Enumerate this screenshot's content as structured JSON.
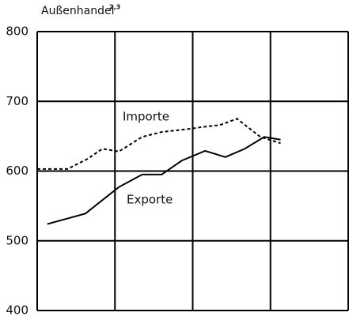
{
  "chart_data": {
    "type": "line",
    "title": "Außenhandel",
    "title_note": "2,3",
    "xlim": [
      0,
      4
    ],
    "xticks": [
      0,
      1,
      2,
      3,
      4
    ],
    "ylim": [
      400,
      800
    ],
    "yticks": [
      400,
      500,
      600,
      700,
      800
    ],
    "grid": true,
    "series": [
      {
        "name": "Importe",
        "color": "#000000",
        "dashed": true,
        "x": [
          0,
          0.39,
          0.64,
          0.84,
          1.05,
          1.35,
          1.6,
          2.0,
          2.11,
          2.35,
          2.57,
          2.87,
          3.13
        ],
        "values": [
          603,
          603,
          617,
          632,
          628,
          649,
          656,
          661,
          663,
          666,
          675,
          649,
          640
        ]
      },
      {
        "name": "Exporte",
        "color": "#000000",
        "dashed": false,
        "x": [
          0.13,
          0.62,
          1.05,
          1.35,
          1.6,
          1.86,
          2.16,
          2.42,
          2.67,
          2.92,
          3.13
        ],
        "values": [
          524,
          539,
          577,
          595,
          595,
          615,
          629,
          620,
          632,
          649,
          645
        ]
      }
    ]
  }
}
